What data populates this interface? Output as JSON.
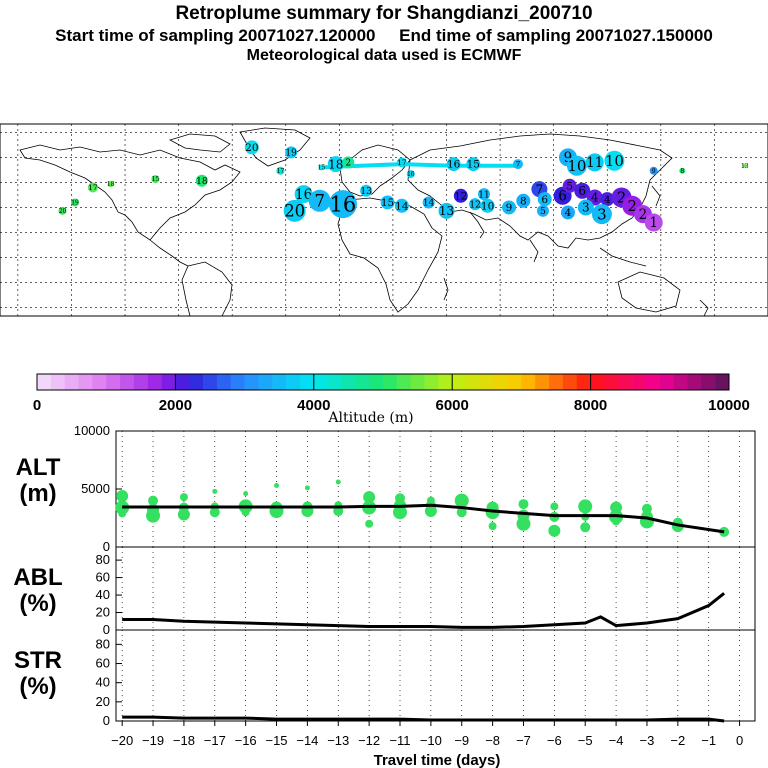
{
  "title": {
    "line1": "Retroplume summary for Shangdianzi_200710",
    "line2": "Start time of sampling 20071027.120000     End time of sampling 20071027.150000",
    "line3": "Meteorological data used is ECMWF"
  },
  "map": {
    "markers": [
      {
        "lon": 11,
        "lat": 66,
        "label": "20",
        "alt": 3900,
        "size": 7
      },
      {
        "lon": 33,
        "lat": 63,
        "label": "19",
        "alt": 3700,
        "size": 6
      },
      {
        "lon": 58,
        "lat": 56,
        "label": "18",
        "alt": 3800,
        "size": 8
      },
      {
        "lon": 65,
        "lat": 57,
        "label": "2",
        "alt": 4700,
        "size": 6
      },
      {
        "lon": 27,
        "lat": 52,
        "label": "17",
        "alt": 4200,
        "size": 4
      },
      {
        "lon": 50,
        "lat": 54,
        "label": "15",
        "alt": 4000,
        "size": 3
      },
      {
        "lon": 95,
        "lat": 57,
        "label": "17",
        "alt": 3900,
        "size": 5
      },
      {
        "lon": 100,
        "lat": 50,
        "label": "16",
        "alt": 3800,
        "size": 4
      },
      {
        "lon": 124,
        "lat": 56,
        "label": "16",
        "alt": 3700,
        "size": 7
      },
      {
        "lon": 135,
        "lat": 56,
        "label": "15",
        "alt": 3700,
        "size": 7
      },
      {
        "lon": 160,
        "lat": 56,
        "label": "7",
        "alt": 3500,
        "size": 5
      },
      {
        "lon": 188,
        "lat": 60,
        "label": "9",
        "alt": 3400,
        "size": 9
      },
      {
        "lon": 193,
        "lat": 55,
        "label": "10",
        "alt": 3600,
        "size": 10
      },
      {
        "lon": 203,
        "lat": 57,
        "label": "11",
        "alt": 3700,
        "size": 9
      },
      {
        "lon": 214,
        "lat": 58,
        "label": "10",
        "alt": 3900,
        "size": 10
      },
      {
        "lon": 40,
        "lat": 38,
        "label": "16",
        "alt": 3800,
        "size": 9
      },
      {
        "lon": 49,
        "lat": 34,
        "label": "7",
        "alt": 3500,
        "size": 11
      },
      {
        "lon": 62,
        "lat": 32,
        "label": "16",
        "alt": 3500,
        "size": 14
      },
      {
        "lon": 35,
        "lat": 28,
        "label": "20",
        "alt": 3700,
        "size": 11
      },
      {
        "lon": 75,
        "lat": 40,
        "label": "13",
        "alt": 3700,
        "size": 6
      },
      {
        "lon": 87,
        "lat": 33,
        "label": "15",
        "alt": 3600,
        "size": 7
      },
      {
        "lon": 95,
        "lat": 31,
        "label": "14",
        "alt": 3600,
        "size": 7
      },
      {
        "lon": 110,
        "lat": 33,
        "label": "14",
        "alt": 3500,
        "size": 6
      },
      {
        "lon": 120,
        "lat": 28,
        "label": "13",
        "alt": 3600,
        "size": 8
      },
      {
        "lon": 128,
        "lat": 37,
        "label": "12",
        "alt": 2200,
        "size": 7
      },
      {
        "lon": 141,
        "lat": 38,
        "label": "11",
        "alt": 3500,
        "size": 6
      },
      {
        "lon": 136,
        "lat": 32,
        "label": "12",
        "alt": 3600,
        "size": 6
      },
      {
        "lon": 143,
        "lat": 31,
        "label": "10",
        "alt": 3700,
        "size": 7
      },
      {
        "lon": 155,
        "lat": 30,
        "label": "9",
        "alt": 3500,
        "size": 7
      },
      {
        "lon": 163,
        "lat": 34,
        "label": "8",
        "alt": 3400,
        "size": 7
      },
      {
        "lon": 172,
        "lat": 41,
        "label": "7",
        "alt": 2500,
        "size": 8
      },
      {
        "lon": 175,
        "lat": 35,
        "label": "6",
        "alt": 3500,
        "size": 7
      },
      {
        "lon": 174,
        "lat": 28,
        "label": "5",
        "alt": 3400,
        "size": 6
      },
      {
        "lon": 185,
        "lat": 37,
        "label": "6",
        "alt": 2200,
        "size": 9
      },
      {
        "lon": 189,
        "lat": 43,
        "label": "5",
        "alt": 2000,
        "size": 7
      },
      {
        "lon": 196,
        "lat": 40,
        "label": "6",
        "alt": 2100,
        "size": 8
      },
      {
        "lon": 203,
        "lat": 36,
        "label": "4",
        "alt": 2000,
        "size": 8
      },
      {
        "lon": 210,
        "lat": 35,
        "label": "4",
        "alt": 2100,
        "size": 7
      },
      {
        "lon": 188,
        "lat": 27,
        "label": "4",
        "alt": 3300,
        "size": 7
      },
      {
        "lon": 198,
        "lat": 30,
        "label": "3",
        "alt": 3500,
        "size": 8
      },
      {
        "lon": 207,
        "lat": 26,
        "label": "3",
        "alt": 3500,
        "size": 10
      },
      {
        "lon": 218,
        "lat": 36,
        "label": "2",
        "alt": 2000,
        "size": 10
      },
      {
        "lon": 224,
        "lat": 31,
        "label": "2",
        "alt": 1800,
        "size": 10
      },
      {
        "lon": 230,
        "lat": 26,
        "label": "2",
        "alt": 1600,
        "size": 9
      },
      {
        "lon": 236,
        "lat": 21,
        "label": "1",
        "alt": 1400,
        "size": 9
      },
      {
        "lon": 236,
        "lat": 52,
        "label": "9",
        "alt": 3100,
        "size": 4
      },
      {
        "lon": 252,
        "lat": 52,
        "label": "8",
        "alt": 5000,
        "size": 3
      },
      {
        "lon": 287,
        "lat": 55,
        "label": "13",
        "alt": 5500,
        "size": 2
      },
      {
        "lon": -78,
        "lat": 42,
        "label": "17",
        "alt": 5300,
        "size": 5
      },
      {
        "lon": -68,
        "lat": 44,
        "label": "18",
        "alt": 5400,
        "size": 3
      },
      {
        "lon": -43,
        "lat": 47,
        "label": "15",
        "alt": 5200,
        "size": 4
      },
      {
        "lon": -17,
        "lat": 46,
        "label": "18",
        "alt": 5000,
        "size": 6
      },
      {
        "lon": -95,
        "lat": 28,
        "label": "20",
        "alt": 5200,
        "size": 4
      },
      {
        "lon": -88,
        "lat": 33,
        "label": "19",
        "alt": 5100,
        "size": 4
      }
    ]
  },
  "colorbar": {
    "tick_labels": [
      "0",
      "2000",
      "4000",
      "6000",
      "8000",
      "10000"
    ],
    "label": "Altitude (m)",
    "min": 0,
    "max": 10000
  },
  "panels": {
    "alt": {
      "label_line1": "ALT",
      "label_line2": "(m)"
    },
    "abl": {
      "label_line1": "ABL",
      "label_line2": "(%)"
    },
    "str": {
      "label_line1": "STR",
      "label_line2": "(%)"
    }
  },
  "x_axis_title": "Travel time (days)",
  "chart_data": [
    {
      "type": "scatter",
      "title": "ALT (m)",
      "xlabel": "Travel time (days)",
      "ylabel": "ALT (m)",
      "xlim": [
        -20.2,
        0.5
      ],
      "ylim": [
        0,
        10000
      ],
      "yticks": [
        0,
        5000,
        10000
      ],
      "x": [
        -20,
        -19,
        -18,
        -17,
        -16,
        -15,
        -14,
        -13,
        -12,
        -11,
        -10,
        -9,
        -8,
        -7,
        -6,
        -5,
        -4,
        -3,
        -2,
        -0.5
      ],
      "mean_altitude": [
        3450,
        3450,
        3450,
        3450,
        3450,
        3450,
        3450,
        3450,
        3500,
        3500,
        3600,
        3400,
        3100,
        2900,
        2700,
        2700,
        2700,
        2500,
        1900,
        1300
      ],
      "member_altitudes": [
        [
          2900,
          3400,
          4400
        ],
        [
          2700,
          3200,
          4000
        ],
        [
          2800,
          3400,
          4300
        ],
        [
          3000,
          3500,
          4800
        ],
        [
          3000,
          3500,
          4600
        ],
        [
          3100,
          3400,
          5300
        ],
        [
          3100,
          3500,
          5100
        ],
        [
          3100,
          3600,
          5600
        ],
        [
          2000,
          3400,
          4300
        ],
        [
          3000,
          3600,
          4200
        ],
        [
          3100,
          3600,
          4000
        ],
        [
          3000,
          3200,
          4000
        ],
        [
          1800,
          3000,
          3400
        ],
        [
          2000,
          2700,
          3700
        ],
        [
          1400,
          2600,
          3500
        ],
        [
          1700,
          2600,
          3500
        ],
        [
          2200,
          2600,
          3400
        ],
        [
          2200,
          2600,
          3300
        ],
        [
          1800,
          2100
        ],
        [
          1300
        ]
      ]
    },
    {
      "type": "line",
      "title": "ABL (%)",
      "xlabel": "Travel time (days)",
      "ylabel": "ABL (%)",
      "xlim": [
        -20.2,
        0.5
      ],
      "ylim": [
        0,
        95
      ],
      "yticks": [
        0,
        20,
        40,
        60,
        80
      ],
      "x": [
        -20,
        -19,
        -18,
        -17,
        -16,
        -15,
        -14,
        -13,
        -12,
        -11,
        -10,
        -9,
        -8,
        -7,
        -6,
        -5,
        -4.5,
        -4,
        -3,
        -2,
        -1,
        -0.5
      ],
      "values": [
        12,
        12,
        10,
        9,
        8,
        7,
        6,
        5,
        4,
        4,
        4,
        3,
        3,
        4,
        6,
        8,
        15,
        5,
        8,
        13,
        28,
        42
      ]
    },
    {
      "type": "line",
      "title": "STR (%)",
      "xlabel": "Travel time (days)",
      "ylabel": "STR (%)",
      "xlim": [
        -20.2,
        0.5
      ],
      "ylim": [
        0,
        95
      ],
      "yticks": [
        0,
        20,
        40,
        60,
        80
      ],
      "x": [
        -20,
        -19,
        -18,
        -17,
        -16,
        -15,
        -14,
        -13,
        -12,
        -11,
        -10,
        -9,
        -8,
        -7,
        -6,
        -5,
        -4,
        -3,
        -2,
        -1,
        -0.5
      ],
      "values": [
        4,
        4,
        3,
        3,
        3,
        2,
        2,
        2,
        2,
        2,
        1,
        1,
        1,
        1,
        1,
        1,
        1,
        1,
        2,
        2,
        0
      ]
    }
  ],
  "x_ticks": [
    {
      "value": -20,
      "label": "−20"
    },
    {
      "value": -19,
      "label": "−19"
    },
    {
      "value": -18,
      "label": "−18"
    },
    {
      "value": -17,
      "label": "−17"
    },
    {
      "value": -16,
      "label": "−16"
    },
    {
      "value": -15,
      "label": "−15"
    },
    {
      "value": -14,
      "label": "−14"
    },
    {
      "value": -13,
      "label": "−13"
    },
    {
      "value": -12,
      "label": "−12"
    },
    {
      "value": -11,
      "label": "−11"
    },
    {
      "value": -10,
      "label": "−10"
    },
    {
      "value": -9,
      "label": "−9"
    },
    {
      "value": -8,
      "label": "−8"
    },
    {
      "value": -7,
      "label": "−7"
    },
    {
      "value": -6,
      "label": "−6"
    },
    {
      "value": -5,
      "label": "−5"
    },
    {
      "value": -4,
      "label": "−4"
    },
    {
      "value": -3,
      "label": "−3"
    },
    {
      "value": -2,
      "label": "−2"
    },
    {
      "value": -1,
      "label": "−1"
    },
    {
      "value": 0,
      "label": "0"
    }
  ]
}
